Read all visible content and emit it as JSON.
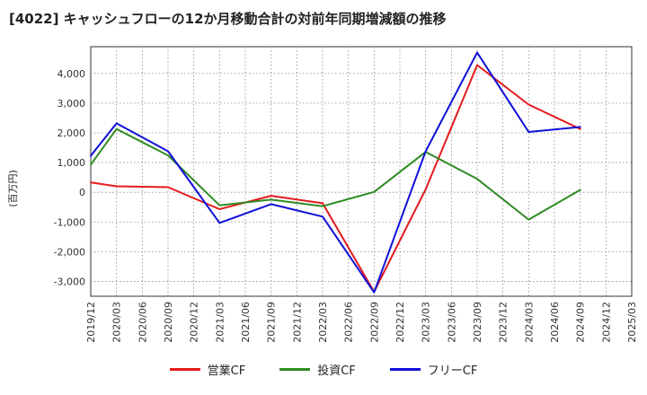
{
  "chart_data": {
    "type": "line",
    "title": "[4022]  キャッシュフローの12か月移動合計の対前年同期増減額の推移",
    "ylabel": "(百万円)",
    "xlabel": "",
    "ylim": [
      -3500,
      4900
    ],
    "yticks": [
      -3000,
      -2000,
      -1000,
      0,
      1000,
      2000,
      3000,
      4000
    ],
    "ytick_labels": [
      "-3,000",
      "-2,000",
      "-1,000",
      "0",
      "1,000",
      "2,000",
      "3,000",
      "4,000"
    ],
    "categories": [
      "2019/12",
      "2020/03",
      "2020/06",
      "2020/09",
      "2020/12",
      "2021/03",
      "2021/06",
      "2021/09",
      "2021/12",
      "2022/03",
      "2022/06",
      "2022/09",
      "2022/12",
      "2023/03",
      "2023/06",
      "2023/09",
      "2023/12",
      "2024/03",
      "2024/06",
      "2024/09",
      "2024/12",
      "2025/03"
    ],
    "grid": true,
    "legend_position": "bottom",
    "series": [
      {
        "name": "営業CF",
        "color": "#e31a1c",
        "points": [
          [
            0,
            330
          ],
          [
            1,
            200
          ],
          [
            3,
            170
          ],
          [
            5,
            -570
          ],
          [
            7,
            -120
          ],
          [
            9,
            -370
          ],
          [
            11,
            -3350
          ],
          [
            13,
            100
          ],
          [
            15,
            4280
          ],
          [
            17,
            2950
          ],
          [
            19,
            2130
          ]
        ]
      },
      {
        "name": "投資CF",
        "color": "#2e8b22",
        "points": [
          [
            0,
            930
          ],
          [
            1,
            2130
          ],
          [
            3,
            1240
          ],
          [
            5,
            -440
          ],
          [
            7,
            -250
          ],
          [
            9,
            -470
          ],
          [
            11,
            10
          ],
          [
            13,
            1360
          ],
          [
            15,
            450
          ],
          [
            17,
            -920
          ],
          [
            19,
            80
          ]
        ]
      },
      {
        "name": "フリーCF",
        "color": "#1010d8",
        "points": [
          [
            0,
            1230
          ],
          [
            1,
            2320
          ],
          [
            3,
            1380
          ],
          [
            5,
            -1030
          ],
          [
            7,
            -400
          ],
          [
            9,
            -820
          ],
          [
            11,
            -3370
          ],
          [
            13,
            1380
          ],
          [
            15,
            4700
          ],
          [
            17,
            2030
          ],
          [
            19,
            2200
          ]
        ]
      }
    ]
  }
}
